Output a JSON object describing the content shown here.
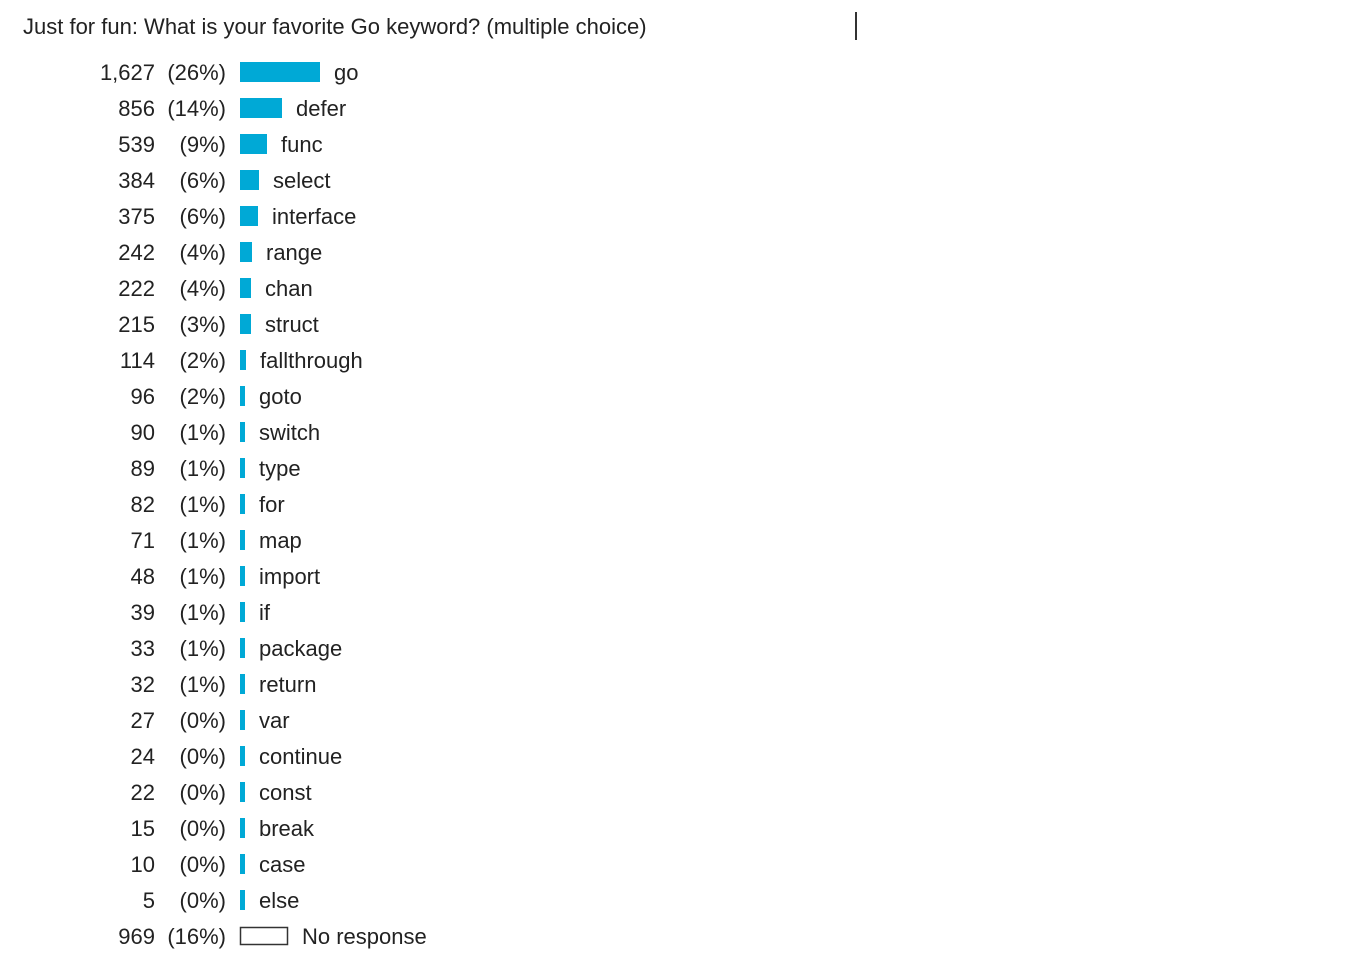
{
  "chart_data": {
    "type": "bar",
    "orientation": "horizontal",
    "title": "Just for fun: What is your favorite Go keyword? (multiple choice)",
    "xlabel": "",
    "ylabel": "",
    "grid": false,
    "legend": "none",
    "colors": {
      "bar": "#00a9d6",
      "no_response_outline": "#333333",
      "text": "#222222"
    },
    "bars": [
      {
        "label": "go",
        "count": 1627,
        "count_text": "1,627",
        "pct_text": "(26%)"
      },
      {
        "label": "defer",
        "count": 856,
        "count_text": "856",
        "pct_text": "(14%)"
      },
      {
        "label": "func",
        "count": 539,
        "count_text": "539",
        "pct_text": "(9%)"
      },
      {
        "label": "select",
        "count": 384,
        "count_text": "384",
        "pct_text": "(6%)"
      },
      {
        "label": "interface",
        "count": 375,
        "count_text": "375",
        "pct_text": "(6%)"
      },
      {
        "label": "range",
        "count": 242,
        "count_text": "242",
        "pct_text": "(4%)"
      },
      {
        "label": "chan",
        "count": 222,
        "count_text": "222",
        "pct_text": "(4%)"
      },
      {
        "label": "struct",
        "count": 215,
        "count_text": "215",
        "pct_text": "(3%)"
      },
      {
        "label": "fallthrough",
        "count": 114,
        "count_text": "114",
        "pct_text": "(2%)"
      },
      {
        "label": "goto",
        "count": 96,
        "count_text": "96",
        "pct_text": "(2%)"
      },
      {
        "label": "switch",
        "count": 90,
        "count_text": "90",
        "pct_text": "(1%)"
      },
      {
        "label": "type",
        "count": 89,
        "count_text": "89",
        "pct_text": "(1%)"
      },
      {
        "label": "for",
        "count": 82,
        "count_text": "82",
        "pct_text": "(1%)"
      },
      {
        "label": "map",
        "count": 71,
        "count_text": "71",
        "pct_text": "(1%)"
      },
      {
        "label": "import",
        "count": 48,
        "count_text": "48",
        "pct_text": "(1%)"
      },
      {
        "label": "if",
        "count": 39,
        "count_text": "39",
        "pct_text": "(1%)"
      },
      {
        "label": "package",
        "count": 33,
        "count_text": "33",
        "pct_text": "(1%)"
      },
      {
        "label": "return",
        "count": 32,
        "count_text": "32",
        "pct_text": "(1%)"
      },
      {
        "label": "var",
        "count": 27,
        "count_text": "27",
        "pct_text": "(0%)"
      },
      {
        "label": "continue",
        "count": 24,
        "count_text": "24",
        "pct_text": "(0%)"
      },
      {
        "label": "const",
        "count": 22,
        "count_text": "22",
        "pct_text": "(0%)"
      },
      {
        "label": "break",
        "count": 15,
        "count_text": "15",
        "pct_text": "(0%)"
      },
      {
        "label": "case",
        "count": 10,
        "count_text": "10",
        "pct_text": "(0%)"
      },
      {
        "label": "else",
        "count": 5,
        "count_text": "5",
        "pct_text": "(0%)"
      },
      {
        "label": "No response",
        "count": 969,
        "count_text": "969",
        "pct_text": "(16%)",
        "outline": true
      }
    ]
  }
}
